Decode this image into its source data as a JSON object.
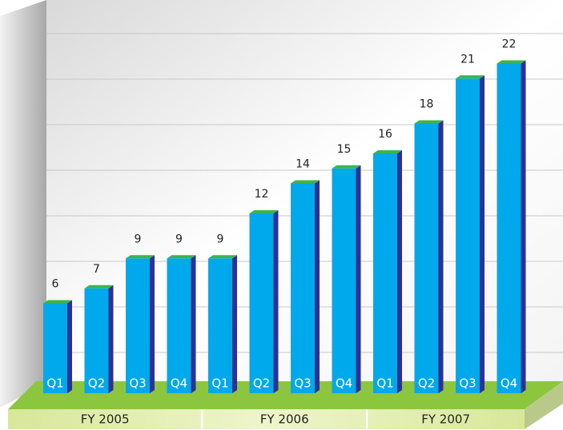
{
  "chart_data": {
    "type": "bar",
    "groups": [
      {
        "label": "FY 2005",
        "categories": [
          "Q1",
          "Q2",
          "Q3",
          "Q4"
        ]
      },
      {
        "label": "FY 2006",
        "categories": [
          "Q1",
          "Q2",
          "Q3",
          "Q4"
        ]
      },
      {
        "label": "FY 2007",
        "categories": [
          "Q1",
          "Q2",
          "Q3",
          "Q4"
        ]
      }
    ],
    "values": [
      6,
      7,
      9,
      9,
      9,
      12,
      14,
      15,
      16,
      18,
      21,
      22
    ],
    "color": "#00a8ec",
    "ylim": [
      0,
      24
    ]
  }
}
